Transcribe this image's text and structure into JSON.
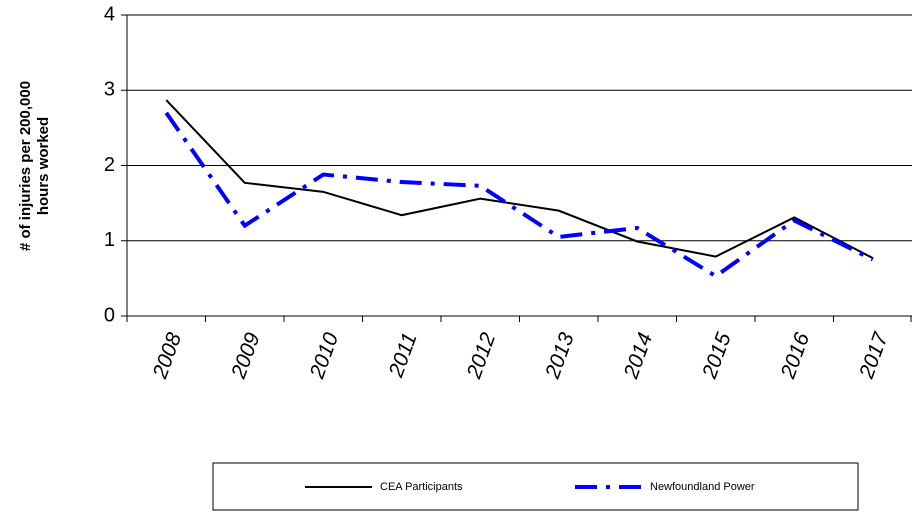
{
  "chart_data": {
    "type": "line",
    "y_label": [
      "# of injuries per 200,000",
      "hours worked"
    ],
    "categories": [
      "2008",
      "2009",
      "2010",
      "2011",
      "2012",
      "2013",
      "2014",
      "2015",
      "2016",
      "2017"
    ],
    "series": [
      {
        "name": "CEA Participants",
        "color": "#000000",
        "dash": "solid",
        "values": [
          2.87,
          1.77,
          1.65,
          1.34,
          1.56,
          1.4,
          0.99,
          0.79,
          1.31,
          0.77
        ]
      },
      {
        "name": "Newfoundland Power",
        "color": "#0000ff",
        "dash": "dash-dot",
        "values": [
          2.7,
          1.2,
          1.88,
          1.78,
          1.73,
          1.05,
          1.17,
          0.53,
          1.27,
          0.75
        ]
      }
    ],
    "ylim": [
      0,
      4
    ],
    "yticks": [
      0,
      1,
      2,
      3,
      4
    ],
    "grid": true,
    "legend": "bottom"
  }
}
